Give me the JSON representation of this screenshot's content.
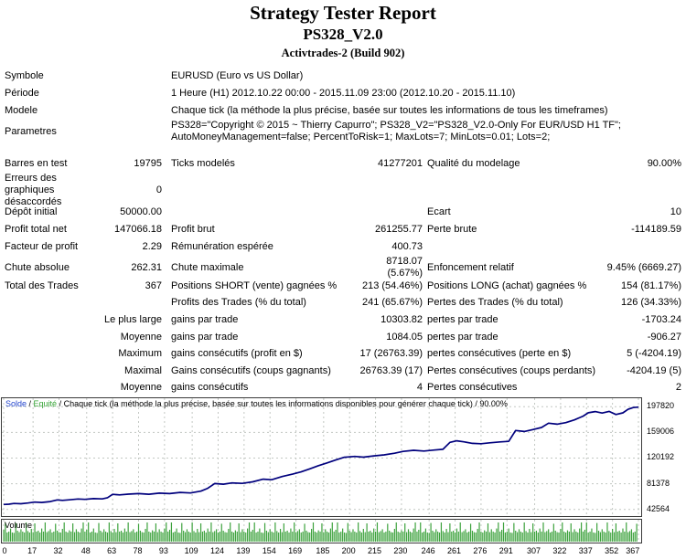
{
  "header": {
    "title": "Strategy Tester Report",
    "ea_name": "PS328_V2.0",
    "server_build": "Activtrades-2 (Build 902)"
  },
  "table": {
    "sections": [
      {
        "rows": [
          {
            "kind": "wide",
            "label": "Symbole",
            "value": "EURUSD (Euro vs US Dollar)"
          },
          {
            "kind": "wide",
            "label": "Période",
            "value": "1 Heure (H1) 2012.10.22 00:00 - 2015.11.09 23:00 (2012.10.20 - 2015.11.10)"
          },
          {
            "kind": "wide",
            "label": "Modele",
            "value": "Chaque tick (la méthode la plus précise, basée sur toutes les informations de tous les timeframes)"
          },
          {
            "kind": "wide",
            "label": "Parametres",
            "value": "PS328=\"Copyright © 2015 ~ Thierry Capurro\"; PS328_V2=\"PS328_V2.0-Only For EUR/USD H1 TF\";\nAutoMoneyManagement=false; PercentToRisk=1; MaxLots=7; MinLots=0.01; Lots=2;"
          }
        ]
      },
      {
        "rows": [
          {
            "kind": "cells",
            "cells": [
              "Barres en test",
              "19795",
              "Ticks modelés",
              "41277201",
              "Qualité du modelage",
              "90.00%"
            ]
          },
          {
            "kind": "cells",
            "cells": [
              "Erreurs des graphiques désaccordés",
              "0",
              "",
              "",
              "",
              ""
            ]
          }
        ]
      },
      {
        "rows": [
          {
            "kind": "cells",
            "cells": [
              "Dépôt initial",
              "50000.00",
              "",
              "",
              "Ecart",
              "10"
            ]
          },
          {
            "kind": "cells",
            "cells": [
              "Profit total net",
              "147066.18",
              "Profit brut",
              "261255.77",
              "Perte brute",
              "-114189.59"
            ]
          },
          {
            "kind": "cells",
            "cells": [
              "Facteur de profit",
              "2.29",
              "Rémunération espérée",
              "400.73",
              "",
              ""
            ]
          },
          {
            "kind": "cells",
            "cells": [
              "Chute absolue",
              "262.31",
              "Chute maximale",
              "8718.07 (5.67%)",
              "Enfoncement relatif",
              "9.45% (6669.27)"
            ]
          }
        ]
      },
      {
        "rows": [
          {
            "kind": "cells",
            "cells": [
              "Total des Trades",
              "367",
              "Positions SHORT (vente) gagnées %",
              "213 (54.46%)",
              "Positions LONG (achat) gagnées %",
              "154 (81.17%)"
            ]
          },
          {
            "kind": "cells",
            "cells": [
              "",
              "",
              "Profits des Trades (% du total)",
              "241 (65.67%)",
              "Pertes des Trades (% du total)",
              "126 (34.33%)"
            ]
          },
          {
            "kind": "cells",
            "cells": [
              "",
              "Le plus large",
              "gains par trade",
              "10303.82",
              "pertes par trade",
              "-1703.24"
            ]
          },
          {
            "kind": "cells",
            "cells": [
              "",
              "Moyenne",
              "gains par trade",
              "1084.05",
              "pertes par trade",
              "-906.27"
            ]
          },
          {
            "kind": "cells",
            "cells": [
              "",
              "Maximum",
              "gains consécutifs (profit en $)",
              "17 (26763.39)",
              "pertes consécutives (perte en $)",
              "5 (-4204.19)"
            ]
          },
          {
            "kind": "cells",
            "cells": [
              "",
              "Maximal",
              "Gains consécutifs (coups gagnants)",
              "26763.39 (17)",
              "Pertes consécutives (coups perdants)",
              "-4204.19 (5)"
            ]
          },
          {
            "kind": "cells",
            "cells": [
              "",
              "Moyenne",
              "gains consécutifs",
              "4",
              "Pertes consécutives",
              "2"
            ]
          }
        ]
      }
    ]
  },
  "chart_data": {
    "type": "line",
    "legend": [
      {
        "label": "Solde",
        "color": "#2244cc"
      },
      {
        "label": "Equité",
        "color": "#35a335"
      }
    ],
    "legend_sep": " / ",
    "header_suffix": "Chaque tick (la méthode la plus précise, basée sur toutes les informations disponibles pour générer chaque tick) / 90.00%",
    "line_color": "#00007d",
    "grid_color": "#c3c8c3",
    "xlim": [
      0,
      367
    ],
    "ylim": [
      32500,
      210500
    ],
    "x_ticks": [
      0,
      17,
      32,
      48,
      63,
      78,
      93,
      109,
      124,
      139,
      154,
      169,
      185,
      200,
      215,
      230,
      246,
      261,
      276,
      291,
      307,
      322,
      337,
      352,
      367
    ],
    "y_ticks": [
      197820,
      159006,
      120192,
      81378,
      42564
    ],
    "series": [
      {
        "name": "Solde",
        "points": [
          [
            0,
            50000
          ],
          [
            3,
            50400
          ],
          [
            6,
            51600
          ],
          [
            10,
            51100
          ],
          [
            14,
            52300
          ],
          [
            18,
            53600
          ],
          [
            22,
            53100
          ],
          [
            27,
            54400
          ],
          [
            31,
            56900
          ],
          [
            34,
            56300
          ],
          [
            38,
            57100
          ],
          [
            43,
            58300
          ],
          [
            47,
            57800
          ],
          [
            52,
            58900
          ],
          [
            57,
            58400
          ],
          [
            60,
            60200
          ],
          [
            63,
            65300
          ],
          [
            67,
            64500
          ],
          [
            72,
            65600
          ],
          [
            78,
            66400
          ],
          [
            84,
            65500
          ],
          [
            90,
            67200
          ],
          [
            96,
            66500
          ],
          [
            102,
            68200
          ],
          [
            108,
            67400
          ],
          [
            114,
            70200
          ],
          [
            118,
            74500
          ],
          [
            122,
            81600
          ],
          [
            127,
            80700
          ],
          [
            132,
            82600
          ],
          [
            138,
            81900
          ],
          [
            144,
            84300
          ],
          [
            150,
            88300
          ],
          [
            155,
            87400
          ],
          [
            161,
            92200
          ],
          [
            167,
            95800
          ],
          [
            172,
            99300
          ],
          [
            177,
            103800
          ],
          [
            182,
            108600
          ],
          [
            187,
            112800
          ],
          [
            192,
            117200
          ],
          [
            197,
            121400
          ],
          [
            203,
            122600
          ],
          [
            208,
            121500
          ],
          [
            214,
            123400
          ],
          [
            220,
            124900
          ],
          [
            226,
            127400
          ],
          [
            231,
            130200
          ],
          [
            237,
            131800
          ],
          [
            243,
            130700
          ],
          [
            249,
            132300
          ],
          [
            254,
            133400
          ],
          [
            258,
            143800
          ],
          [
            262,
            146200
          ],
          [
            266,
            144700
          ],
          [
            271,
            142400
          ],
          [
            276,
            141800
          ],
          [
            281,
            143200
          ],
          [
            287,
            144600
          ],
          [
            292,
            145400
          ],
          [
            296,
            161800
          ],
          [
            301,
            160300
          ],
          [
            306,
            163200
          ],
          [
            311,
            166400
          ],
          [
            315,
            172800
          ],
          [
            320,
            171300
          ],
          [
            325,
            173600
          ],
          [
            330,
            177800
          ],
          [
            335,
            183400
          ],
          [
            338,
            188600
          ],
          [
            342,
            190300
          ],
          [
            346,
            188100
          ],
          [
            350,
            190600
          ],
          [
            354,
            185900
          ],
          [
            358,
            188400
          ],
          [
            361,
            193800
          ],
          [
            364,
            196400
          ],
          [
            367,
            197066
          ]
        ]
      }
    ],
    "volume": {
      "label": "Volume",
      "bars": 367,
      "color": "#3da23d",
      "pattern": [
        0.55,
        0.95,
        0.4,
        0.45,
        0.62,
        0.4,
        0.38,
        0.92,
        0.5,
        0.42,
        0.58,
        0.45,
        0.4,
        0.95,
        0.48,
        0.4,
        0.6,
        0.42,
        0.9,
        0.45,
        0.5,
        0.4,
        0.62,
        0.45,
        0.95,
        0.42,
        0.48,
        0.58,
        0.4,
        0.45,
        0.88,
        0.5,
        0.42,
        0.4,
        0.6,
        0.95,
        0.45,
        0.4,
        0.52,
        0.45,
        0.9,
        0.42,
        0.58,
        0.45,
        0.4,
        0.62,
        0.95,
        0.45
      ]
    }
  }
}
